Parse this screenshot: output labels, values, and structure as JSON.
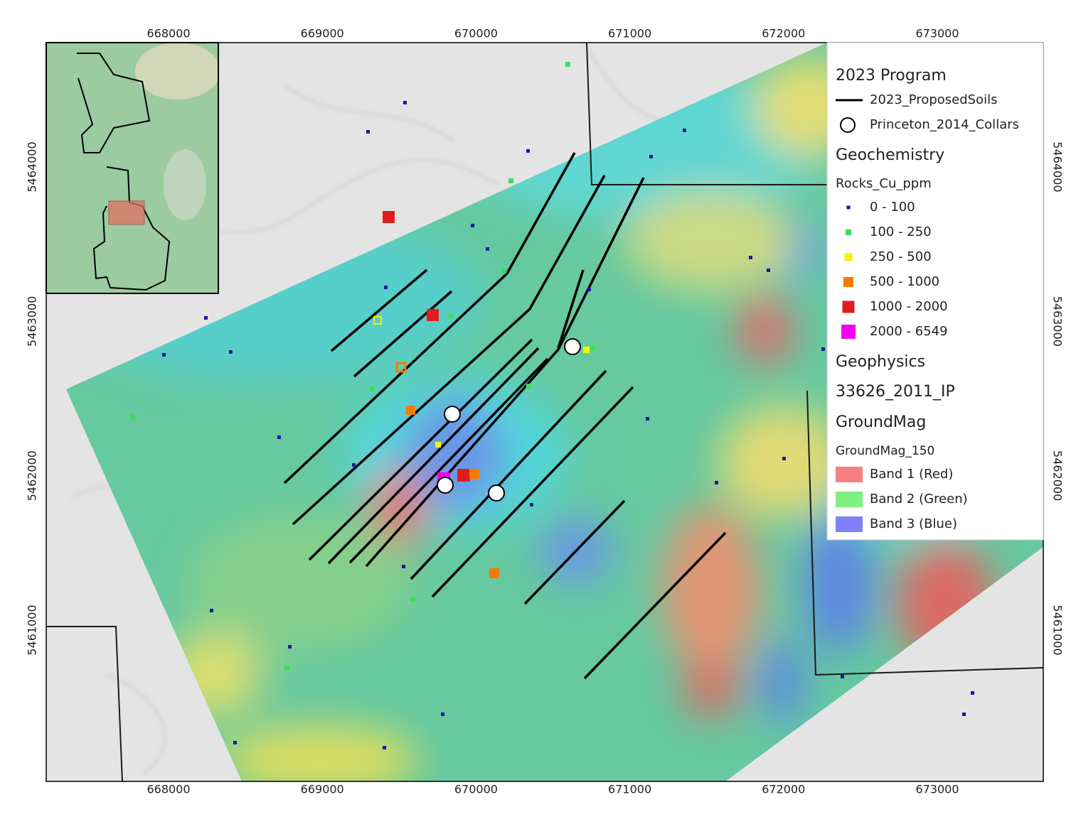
{
  "map": {
    "x_ticks": [
      668000,
      669000,
      670000,
      671000,
      672000,
      673000
    ],
    "y_ticks": [
      5461000,
      5462000,
      5463000,
      5464000
    ],
    "legend": {
      "program": {
        "title": "2023 Program",
        "soils": "2023_ProposedSoils",
        "collars": "Princeton_2014_Collars"
      },
      "geochemistry": {
        "title": "Geochemistry",
        "layer": "Rocks_Cu_ppm",
        "classes": [
          {
            "label": "0 - 100",
            "color": "#1a1aa0"
          },
          {
            "label": "100 - 250",
            "color": "#3ddc5a"
          },
          {
            "label": "250 - 500",
            "color": "#f5f500"
          },
          {
            "label": "500 - 1000",
            "color": "#f57a00"
          },
          {
            "label": "1000 - 2000",
            "color": "#e01c1c"
          },
          {
            "label": "2000 - 6549",
            "color": "#f000f0"
          }
        ]
      },
      "geophysics": {
        "title": "Geophysics",
        "ip": "33626_2011_IP",
        "groundmag": "GroundMag",
        "layer": "GroundMag_150",
        "bands": [
          {
            "label": "Band 1 (Red)",
            "color": "#f88080"
          },
          {
            "label": "Band 2 (Green)",
            "color": "#80f080"
          },
          {
            "label": "Band 3 (Blue)",
            "color": "#8080f8"
          }
        ]
      }
    }
  }
}
